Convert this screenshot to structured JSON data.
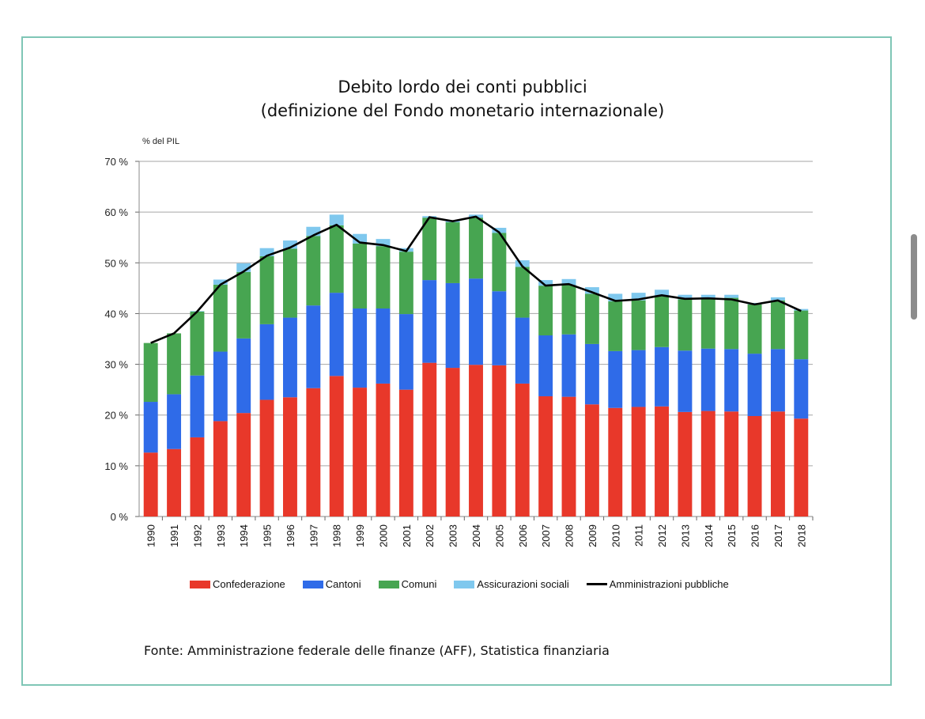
{
  "title_line1": "Debito lordo dei conti pubblici",
  "title_line2": "(definizione del Fondo monetario internazionale)",
  "unit_label": "% del PIL",
  "source": "Fonte: Amministrazione federale delle finanze (AFF), Statistica finanziaria",
  "colors": {
    "confederazione": "#e8382a",
    "cantoni": "#2f6be8",
    "comuni": "#47a551",
    "assicurazioni": "#7fc8ee",
    "line": "#000000",
    "frame": "#7fc6b6"
  },
  "legend": [
    {
      "label": "Confederazione",
      "type": "box",
      "color": "#e8382a"
    },
    {
      "label": "Cantoni",
      "type": "box",
      "color": "#2f6be8"
    },
    {
      "label": "Comuni",
      "type": "box",
      "color": "#47a551"
    },
    {
      "label": "Assicurazioni sociali",
      "type": "box",
      "color": "#7fc8ee"
    },
    {
      "label": "Amministrazioni pubbliche",
      "type": "line",
      "color": "#000000"
    }
  ],
  "chart_data": {
    "type": "bar",
    "stacked": true,
    "title": "Debito lordo dei conti pubblici (definizione del Fondo monetario internazionale)",
    "ylabel": "% del PIL",
    "ylim": [
      0,
      70
    ],
    "yticks": [
      "0 %",
      "10 %",
      "20 %",
      "30 %",
      "40 %",
      "50 %",
      "60 %",
      "70 %"
    ],
    "grid": true,
    "legend_position": "bottom",
    "categories": [
      "1990",
      "1991",
      "1992",
      "1993",
      "1994",
      "1995",
      "1996",
      "1997",
      "1998",
      "1999",
      "2000",
      "2001",
      "2002",
      "2003",
      "2004",
      "2005",
      "2006",
      "2007",
      "2008",
      "2009",
      "2010",
      "2011",
      "2012",
      "2013",
      "2014",
      "2015",
      "2016",
      "2017",
      "2018"
    ],
    "series": [
      {
        "name": "Confederazione",
        "type": "bar",
        "values": [
          12.6,
          13.3,
          15.6,
          18.8,
          20.4,
          23.0,
          23.5,
          25.3,
          27.7,
          25.4,
          26.2,
          25.0,
          30.3,
          29.3,
          29.9,
          29.8,
          26.2,
          23.7,
          23.6,
          22.1,
          21.4,
          21.6,
          21.7,
          20.6,
          20.8,
          20.7,
          19.8,
          20.7,
          19.3
        ]
      },
      {
        "name": "Cantoni",
        "type": "bar",
        "values": [
          10.0,
          10.8,
          12.2,
          13.7,
          14.7,
          14.9,
          15.7,
          16.3,
          16.4,
          15.6,
          14.8,
          14.9,
          16.3,
          16.7,
          17.0,
          14.6,
          13.0,
          12.0,
          12.3,
          11.9,
          11.2,
          11.2,
          11.7,
          12.1,
          12.3,
          12.3,
          12.3,
          12.3,
          11.7
        ]
      },
      {
        "name": "Comuni",
        "type": "bar",
        "values": [
          11.6,
          12.0,
          12.6,
          13.2,
          13.1,
          13.4,
          13.6,
          13.7,
          13.3,
          12.8,
          12.3,
          12.3,
          12.3,
          12.0,
          12.0,
          11.5,
          10.0,
          9.8,
          9.7,
          9.9,
          9.8,
          9.8,
          10.0,
          10.1,
          10.0,
          10.1,
          9.7,
          9.6,
          9.6
        ]
      },
      {
        "name": "Assicurazioni sociali",
        "type": "bar",
        "values": [
          0.0,
          0.0,
          0.1,
          1.0,
          1.7,
          1.6,
          1.6,
          1.8,
          2.1,
          1.9,
          1.4,
          0.7,
          0.3,
          0.4,
          0.6,
          1.0,
          1.3,
          1.1,
          1.2,
          1.3,
          1.5,
          1.5,
          1.3,
          0.9,
          0.6,
          0.6,
          0.3,
          0.6,
          0.3
        ]
      },
      {
        "name": "Amministrazioni pubbliche",
        "type": "line",
        "values": [
          34.2,
          36.1,
          40.4,
          45.7,
          48.3,
          51.4,
          53.0,
          55.4,
          57.5,
          54.0,
          53.5,
          52.3,
          59.0,
          58.2,
          59.1,
          56.0,
          49.3,
          45.5,
          45.8,
          44.2,
          42.5,
          42.8,
          43.6,
          42.9,
          43.0,
          42.8,
          41.8,
          42.6,
          40.5
        ]
      }
    ]
  }
}
